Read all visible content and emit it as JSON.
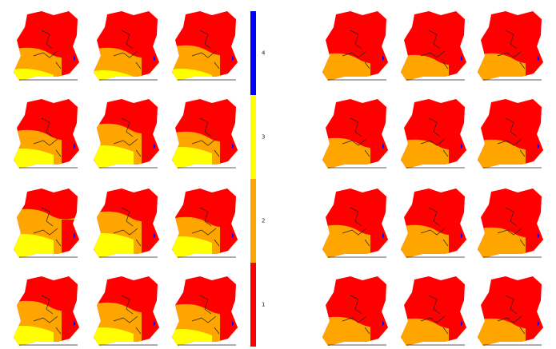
{
  "legend": {
    "classes": [
      {
        "label": "4",
        "color": "#0000ff"
      },
      {
        "label": "3",
        "color": "#ffff00"
      },
      {
        "label": "2",
        "color": "#ffa500"
      },
      {
        "label": "1",
        "color": "#ff0000"
      }
    ]
  }
}
